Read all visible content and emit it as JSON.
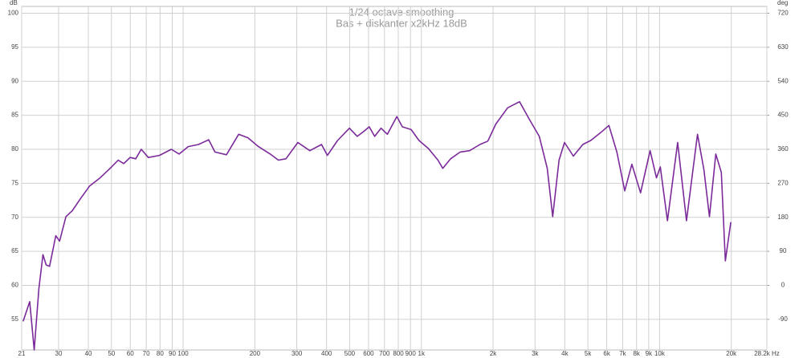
{
  "chart_data": {
    "type": "line",
    "title": "1/24 octave smoothing",
    "subtitle": "Bas + diskanter x2kHz 18dB",
    "y_label": "dB",
    "y2_label": "deg",
    "x_scale": "log",
    "grid": true,
    "xlim": [
      21,
      28200
    ],
    "xticks": [
      21,
      30,
      40,
      50,
      60,
      70,
      80,
      90,
      100,
      200,
      300,
      400,
      500,
      600,
      700,
      800,
      900,
      {
        "value": 1000,
        "label": "1k"
      },
      {
        "value": 2000,
        "label": "2k"
      },
      {
        "value": 3000,
        "label": "3k"
      },
      {
        "value": 4000,
        "label": "4k"
      },
      {
        "value": 5000,
        "label": "5k"
      },
      {
        "value": 6000,
        "label": "6k"
      },
      {
        "value": 7000,
        "label": "7k"
      },
      {
        "value": 8000,
        "label": "8k"
      },
      {
        "value": 9000,
        "label": "9k"
      },
      {
        "value": 10000,
        "label": "10k"
      },
      {
        "value": 20000,
        "label": "20k"
      },
      {
        "value": 28200,
        "label": "28.2k Hz"
      }
    ],
    "ylim": [
      50.5,
      101
    ],
    "yticks": [
      55,
      60,
      65,
      70,
      75,
      80,
      85,
      90,
      95,
      100
    ],
    "y2lim": [
      -171,
      738
    ],
    "y2ticks": [
      -90,
      0,
      90,
      180,
      270,
      360,
      450,
      540,
      630,
      720
    ],
    "x": [
      21.3,
      22.7,
      23.7,
      24.8,
      25.8,
      26.6,
      27.5,
      29.2,
      30.3,
      32.2,
      34.3,
      37.0,
      40.5,
      44.8,
      49.4,
      53.4,
      56.3,
      59.9,
      63.2,
      66.7,
      71.4,
      79.5,
      89.2,
      96.2,
      105,
      116,
      128,
      136,
      152,
      171,
      187,
      207,
      232,
      251,
      270,
      303,
      340,
      381,
      403,
      445,
      499,
      538,
      572,
      604,
      637,
      677,
      720,
      789,
      832,
      906,
      977,
      1071,
      1174,
      1230,
      1327,
      1455,
      1595,
      1762,
      1901,
      2053,
      2303,
      2583,
      2851,
      3127,
      3375,
      3558,
      3783,
      3990,
      4343,
      4760,
      5140,
      5679,
      6128,
      6616,
      7140,
      7650,
      8320,
      9120,
      9700,
      10070,
      10790,
      11910,
      12970,
      14420,
      15340,
      16190,
      17210,
      18160,
      18880,
      19910
    ],
    "series": [
      {
        "color": "#7b2a9a",
        "values": [
          54.7,
          57.6,
          50.5,
          59.5,
          64.5,
          63.0,
          62.8,
          67.3,
          66.5,
          70.1,
          71.0,
          72.7,
          74.6,
          75.8,
          77.2,
          78.4,
          77.9,
          78.8,
          78.6,
          80.0,
          78.8,
          79.1,
          80.0,
          79.3,
          80.4,
          80.7,
          81.4,
          79.6,
          79.2,
          82.2,
          81.7,
          80.4,
          79.3,
          78.4,
          78.6,
          81.0,
          79.8,
          80.7,
          79.1,
          81.3,
          83.1,
          81.9,
          82.6,
          83.3,
          81.9,
          83.1,
          82.2,
          84.8,
          83.3,
          82.9,
          81.3,
          80.1,
          78.4,
          77.2,
          78.6,
          79.6,
          79.8,
          80.7,
          81.2,
          83.7,
          86.1,
          87.0,
          84.3,
          81.9,
          77.2,
          70.1,
          78.4,
          81.0,
          79.0,
          80.7,
          81.3,
          82.5,
          83.5,
          79.6,
          73.9,
          77.8,
          73.6,
          79.8,
          75.8,
          77.4,
          69.5,
          81.0,
          69.5,
          82.2,
          77.0,
          70.1,
          79.3,
          76.6,
          63.6,
          69.3
        ]
      }
    ]
  }
}
